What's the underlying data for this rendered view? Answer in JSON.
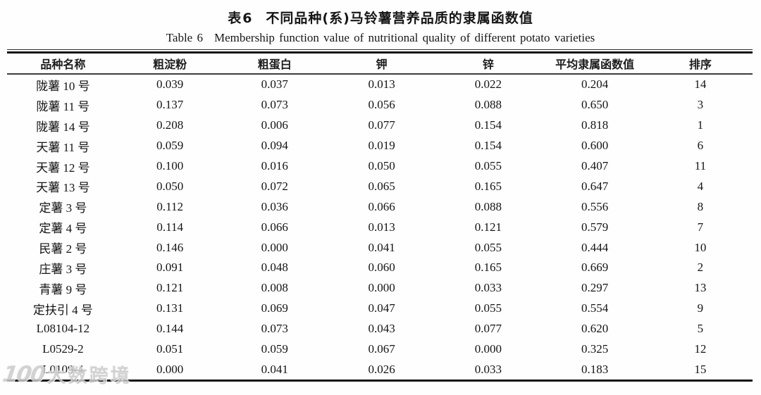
{
  "page": {
    "caption_cn_prefix": "表6",
    "caption_cn_text": "不同品种(系)马铃薯营养品质的隶属函数值",
    "caption_en_prefix": "Table 6",
    "caption_en_text": "Membership function value of nutritional quality of different potato varieties"
  },
  "table": {
    "columns": [
      "品种名称",
      "粗淀粉",
      "粗蛋白",
      "钾",
      "锌",
      "平均隶属函数值",
      "排序"
    ],
    "rows": [
      [
        "陇薯 10 号",
        "0.039",
        "0.037",
        "0.013",
        "0.022",
        "0.204",
        "14"
      ],
      [
        "陇薯 11 号",
        "0.137",
        "0.073",
        "0.056",
        "0.088",
        "0.650",
        "3"
      ],
      [
        "陇薯 14 号",
        "0.208",
        "0.006",
        "0.077",
        "0.154",
        "0.818",
        "1"
      ],
      [
        "天薯 11 号",
        "0.059",
        "0.094",
        "0.019",
        "0.154",
        "0.600",
        "6"
      ],
      [
        "天薯 12 号",
        "0.100",
        "0.016",
        "0.050",
        "0.055",
        "0.407",
        "11"
      ],
      [
        "天薯 13 号",
        "0.050",
        "0.072",
        "0.065",
        "0.165",
        "0.647",
        "4"
      ],
      [
        "定薯 3 号",
        "0.112",
        "0.036",
        "0.066",
        "0.088",
        "0.556",
        "8"
      ],
      [
        "定薯 4 号",
        "0.114",
        "0.066",
        "0.013",
        "0.121",
        "0.579",
        "7"
      ],
      [
        "民薯 2 号",
        "0.146",
        "0.000",
        "0.041",
        "0.055",
        "0.444",
        "10"
      ],
      [
        "庄薯 3 号",
        "0.091",
        "0.048",
        "0.060",
        "0.165",
        "0.669",
        "2"
      ],
      [
        "青薯 9 号",
        "0.121",
        "0.008",
        "0.000",
        "0.033",
        "0.297",
        "13"
      ],
      [
        "定扶引 4 号",
        "0.131",
        "0.069",
        "0.047",
        "0.055",
        "0.554",
        "9"
      ],
      [
        "L08104-12",
        "0.144",
        "0.073",
        "0.043",
        "0.077",
        "0.620",
        "5"
      ],
      [
        "L0529-2",
        "0.051",
        "0.059",
        "0.067",
        "0.000",
        "0.325",
        "12"
      ],
      [
        "L0109-4",
        "0.000",
        "0.041",
        "0.026",
        "0.033",
        "0.183",
        "15"
      ]
    ]
  },
  "watermark": {
    "logo": "100",
    "text": "大数跨境"
  },
  "colors": {
    "text": "#1a1a1a",
    "rule": "#121212",
    "watermark": "#cbcbcb"
  }
}
